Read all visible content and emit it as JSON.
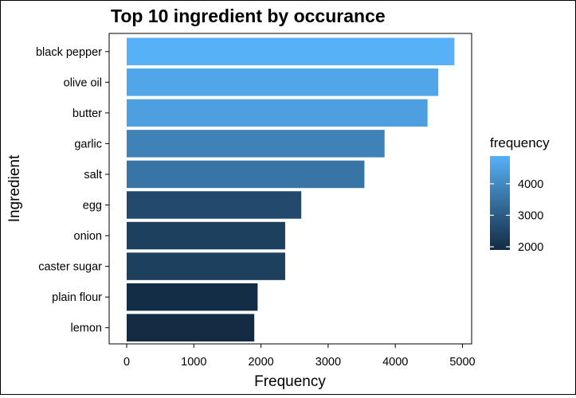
{
  "chart_data": {
    "type": "bar",
    "orientation": "horizontal",
    "title": "Top 10 ingredient by occurance",
    "xlabel": "Frequency",
    "ylabel": "Ingredient",
    "xlim": [
      0,
      5000
    ],
    "xticks": [
      0,
      1000,
      2000,
      3000,
      4000,
      5000
    ],
    "grid": false,
    "legend_position": "right",
    "categories": [
      "black pepper",
      "olive oil",
      "butter",
      "garlic",
      "salt",
      "egg",
      "onion",
      "caster sugar",
      "plain flour",
      "lemon"
    ],
    "values": [
      4880,
      4640,
      4480,
      3840,
      3540,
      2600,
      2360,
      2360,
      1950,
      1900
    ],
    "color_scale": {
      "title": "frequency",
      "ticks": [
        2000,
        3000,
        4000
      ],
      "low": {
        "value": 1900,
        "color": "#132b43"
      },
      "high": {
        "value": 4880,
        "color": "#56b1f7"
      }
    }
  }
}
